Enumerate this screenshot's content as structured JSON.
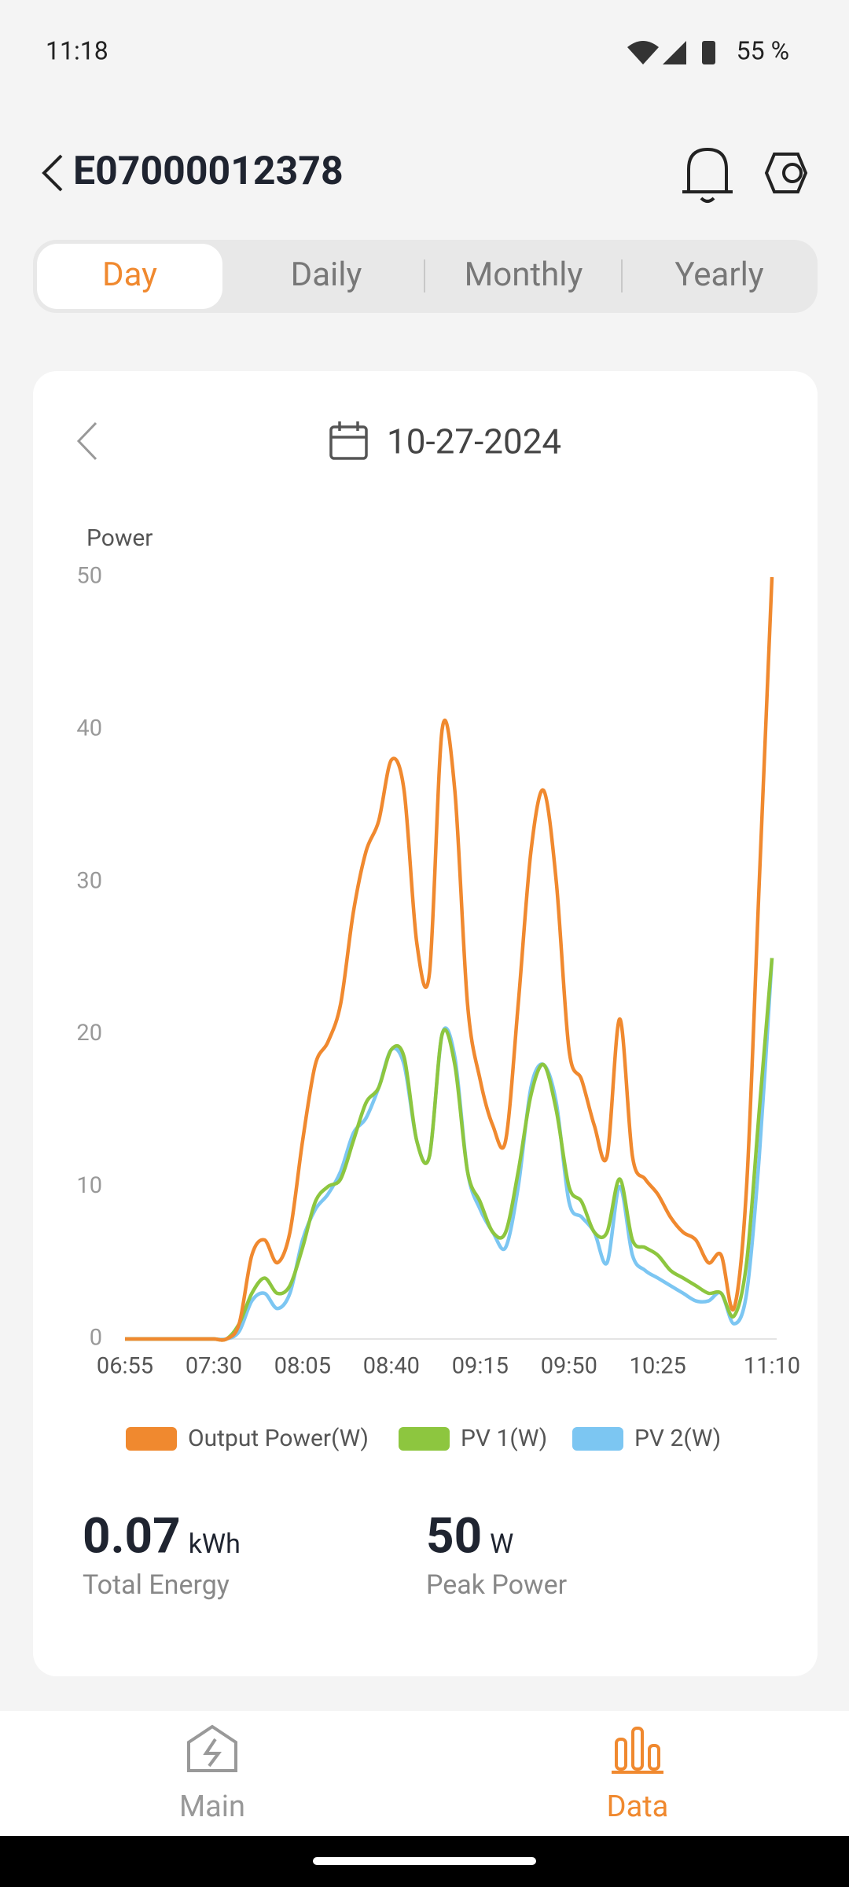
{
  "status_bar": {
    "time": "11:18",
    "battery": "55 %"
  },
  "header": {
    "title": "E07000012378"
  },
  "tabs": [
    "Day",
    "Daily",
    "Monthly",
    "Yearly"
  ],
  "date": "10-27-2024",
  "chart_data": {
    "type": "line",
    "ylabel": "Power",
    "categories": [
      "06:55",
      null,
      null,
      null,
      null,
      null,
      null,
      "07:30",
      null,
      null,
      null,
      null,
      null,
      null,
      "08:05",
      null,
      null,
      null,
      null,
      null,
      null,
      "08:40",
      null,
      null,
      null,
      null,
      null,
      null,
      "09:15",
      null,
      null,
      null,
      null,
      null,
      null,
      "09:50",
      null,
      null,
      null,
      null,
      null,
      null,
      "10:25",
      null,
      null,
      null,
      null,
      null,
      null,
      null,
      null,
      "11:10"
    ],
    "ylim": [
      0,
      50
    ],
    "yticks": [
      0,
      10,
      20,
      30,
      40,
      50
    ],
    "series": [
      {
        "name": "Output Power(W)",
        "color": "#f0892f",
        "values": [
          0,
          0,
          0,
          0,
          0,
          0,
          0,
          0,
          0,
          1,
          5.5,
          6.5,
          5,
          7,
          13,
          18,
          19.5,
          22,
          28,
          32,
          34,
          38,
          36,
          26,
          24,
          40,
          36,
          22,
          17,
          14,
          13,
          22,
          32,
          36,
          30,
          19,
          17,
          14,
          12,
          21,
          12,
          10.5,
          9.5,
          8,
          7,
          6.5,
          5,
          5.5,
          2,
          10,
          30,
          50
        ]
      },
      {
        "name": "PV 1(W)",
        "color": "#8dc63f",
        "values": [
          0,
          0,
          0,
          0,
          0,
          0,
          0,
          0,
          0,
          1,
          3,
          4,
          3,
          3.5,
          6,
          9,
          10,
          10.5,
          13,
          15.5,
          16.5,
          19,
          18.5,
          13,
          12,
          20,
          18,
          11,
          9,
          7,
          7,
          11,
          16,
          18,
          15,
          10,
          9,
          7,
          7,
          10.5,
          6.5,
          6,
          5.5,
          4.5,
          4,
          3.5,
          3,
          3,
          1.5,
          5,
          15,
          25
        ]
      },
      {
        "name": "PV 2(W)",
        "color": "#7cc6f2",
        "values": [
          0,
          0,
          0,
          0,
          0,
          0,
          0,
          0,
          0,
          0.5,
          2.5,
          3,
          2,
          3,
          6.5,
          8.5,
          9.5,
          11,
          13.5,
          14.5,
          16.5,
          19,
          18,
          13,
          12,
          20,
          18.5,
          11,
          8.5,
          7,
          6,
          10,
          16.5,
          18,
          15.5,
          9,
          8,
          7,
          5,
          10,
          5.5,
          4.5,
          4,
          3.5,
          3,
          2.5,
          2.5,
          3,
          1,
          3,
          12,
          25
        ]
      }
    ]
  },
  "summary": {
    "energy": {
      "value": "0.07",
      "unit": "kWh",
      "label": "Total Energy"
    },
    "peak": {
      "value": "50",
      "unit": "W",
      "label": "Peak Power"
    }
  },
  "nav": [
    "Main",
    "Data"
  ]
}
